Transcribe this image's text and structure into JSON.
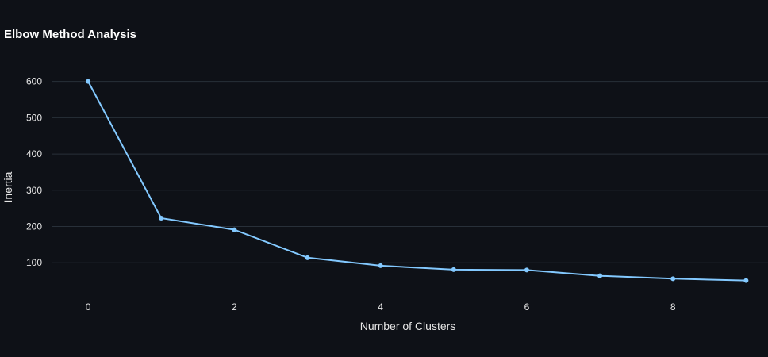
{
  "chart_data": {
    "type": "line",
    "title": "Elbow Method Analysis",
    "xlabel": "Number of Clusters",
    "ylabel": "Inertia",
    "x": [
      0,
      1,
      2,
      3,
      4,
      5,
      6,
      7,
      8,
      9
    ],
    "series": [
      {
        "values": [
          600,
          223,
          191,
          114,
          92,
          81,
          80,
          64,
          56,
          51
        ]
      }
    ],
    "x_ticks": [
      0,
      2,
      4,
      6,
      8
    ],
    "y_ticks": [
      100,
      200,
      300,
      400,
      500,
      600
    ],
    "xlim": [
      -0.5,
      9.3
    ],
    "ylim": [
      13,
      632
    ],
    "grid": true,
    "line_color": "#83c9ff",
    "background_color": "#0e1117",
    "grid_color": "#283039",
    "text_color": "#e6e6e6"
  }
}
